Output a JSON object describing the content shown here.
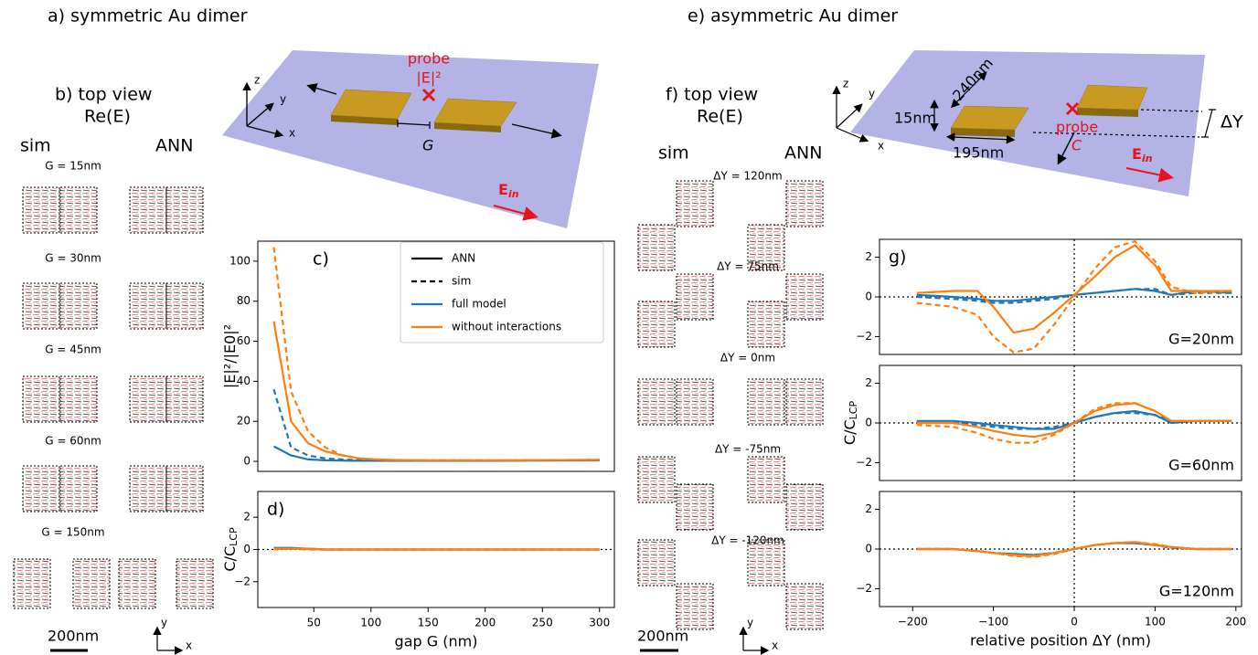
{
  "chart_data": [
    {
      "type": "line",
      "panel": "c)",
      "ylabel": "|E|²/|E0|²",
      "x": [
        15,
        30,
        45,
        60,
        75,
        90,
        105,
        120,
        150,
        200,
        250,
        300
      ],
      "xlim": [
        1,
        313
      ],
      "ylim": [
        -5,
        110
      ],
      "yticks": [
        0,
        20,
        40,
        60,
        80,
        100
      ],
      "legend": [
        {
          "label": "ANN",
          "style": "solid"
        },
        {
          "label": "sim",
          "style": "dashed"
        },
        {
          "label": "full model",
          "color": "#1f77b4"
        },
        {
          "label": "without interactions",
          "color": "#ff7f0e"
        }
      ],
      "series": [
        {
          "color": "#1f77b4",
          "style": "solid",
          "values": [
            7.5,
            3,
            1,
            0.5,
            0.4,
            0.3,
            0.3,
            0.3,
            0.3,
            0.3,
            0.4,
            0.5
          ]
        },
        {
          "color": "#1f77b4",
          "style": "dashed",
          "values": [
            36,
            7,
            3,
            1.5,
            1,
            0.6,
            0.5,
            0.4,
            0.4,
            0.4,
            0.5,
            0.6
          ]
        },
        {
          "color": "#ff7f0e",
          "style": "solid",
          "values": [
            70,
            20,
            9,
            5,
            3,
            1.5,
            1,
            0.7,
            0.5,
            0.5,
            0.6,
            0.8
          ]
        },
        {
          "color": "#ff7f0e",
          "style": "dashed",
          "values": [
            107,
            35,
            15,
            7,
            3,
            1.5,
            1,
            0.6,
            0.5,
            0.5,
            0.6,
            0.8
          ]
        }
      ]
    },
    {
      "type": "line",
      "panel": "d)",
      "ylabel": "C/C",
      "ylabel_sub": "LCP",
      "xlabel": "gap G (nm)",
      "hline": 0,
      "x": [
        15,
        30,
        45,
        60,
        75,
        90,
        105,
        120,
        150,
        200,
        250,
        300
      ],
      "xlim": [
        1,
        313
      ],
      "ylim": [
        -3.6,
        3.6
      ],
      "xticks": [
        50,
        100,
        150,
        200,
        250,
        300
      ],
      "yticks": [
        {
          "value": -2,
          "label": "−2"
        },
        0,
        2
      ],
      "series": [
        {
          "color": "#1f77b4",
          "style": "solid",
          "values": [
            0.1,
            0.1,
            0.05,
            0,
            0,
            0,
            0,
            0,
            0,
            0,
            0,
            0
          ]
        },
        {
          "color": "#1f77b4",
          "style": "dashed",
          "values": [
            0.05,
            0.05,
            0,
            0,
            0,
            0,
            0,
            0,
            0,
            0,
            0,
            0
          ]
        },
        {
          "color": "#ff7f0e",
          "style": "solid",
          "values": [
            0.05,
            0.05,
            0.05,
            0,
            0,
            0,
            0,
            0,
            0,
            0,
            0,
            0
          ]
        },
        {
          "color": "#ff7f0e",
          "style": "dashed",
          "values": [
            0,
            0.05,
            0,
            0,
            0,
            0,
            0,
            0,
            0,
            0,
            0,
            0
          ]
        }
      ]
    },
    {
      "type": "line",
      "panel": "g)",
      "annotation": "G=20nm",
      "hline": 0,
      "vline": 0,
      "x": [
        -195,
        -150,
        -120,
        -100,
        -75,
        -50,
        -25,
        0,
        25,
        50,
        75,
        100,
        120,
        150,
        195
      ],
      "xlim": [
        -241,
        207
      ],
      "ylim": [
        -2.9,
        2.9
      ],
      "yticks": [
        {
          "value": -2,
          "label": "−2"
        },
        0,
        2
      ],
      "series": [
        {
          "color": "#1f77b4",
          "style": "solid",
          "values": [
            0.1,
            0,
            -0.1,
            -0.2,
            -0.2,
            -0.1,
            0,
            0.1,
            0.2,
            0.3,
            0.4,
            0.3,
            0.1,
            0.3,
            0.2
          ]
        },
        {
          "color": "#1f77b4",
          "style": "dashed",
          "values": [
            0,
            -0.1,
            -0.2,
            -0.3,
            -0.3,
            -0.2,
            -0.1,
            0.1,
            0.2,
            0.3,
            0.4,
            0.4,
            0.1,
            0.2,
            0.2
          ]
        },
        {
          "color": "#ff7f0e",
          "style": "solid",
          "values": [
            0.2,
            0.3,
            0.3,
            -0.5,
            -1.8,
            -1.6,
            -0.8,
            0.1,
            1.0,
            2.0,
            2.6,
            1.6,
            0.3,
            0.3,
            0.3
          ]
        },
        {
          "color": "#ff7f0e",
          "style": "dashed",
          "values": [
            -0.3,
            -0.5,
            -0.9,
            -2.0,
            -2.8,
            -2.6,
            -1.4,
            0,
            1.4,
            2.5,
            2.8,
            1.8,
            0.5,
            0.2,
            0.3
          ]
        }
      ]
    },
    {
      "type": "line",
      "annotation": "G=60nm",
      "ylabel": "C/C",
      "ylabel_sub": "LCP",
      "hline": 0,
      "vline": 0,
      "x": [
        -195,
        -150,
        -120,
        -100,
        -75,
        -50,
        -25,
        0,
        25,
        50,
        75,
        100,
        120,
        150,
        195
      ],
      "xlim": [
        -241,
        207
      ],
      "ylim": [
        -2.9,
        2.9
      ],
      "yticks": [
        {
          "value": -2,
          "label": "−2"
        },
        0,
        2
      ],
      "series": [
        {
          "color": "#1f77b4",
          "style": "solid",
          "values": [
            0.1,
            0.1,
            0,
            -0.1,
            -0.2,
            -0.3,
            -0.3,
            0,
            0.3,
            0.5,
            0.6,
            0.4,
            0,
            0.1,
            0.1
          ]
        },
        {
          "color": "#1f77b4",
          "style": "dashed",
          "values": [
            0,
            0,
            -0.1,
            -0.2,
            -0.3,
            -0.3,
            -0.2,
            0,
            0.3,
            0.5,
            0.5,
            0.4,
            0.1,
            0.1,
            0.1
          ]
        },
        {
          "color": "#ff7f0e",
          "style": "solid",
          "values": [
            0,
            0,
            -0.2,
            -0.4,
            -0.6,
            -0.7,
            -0.5,
            0,
            0.6,
            0.9,
            1.0,
            0.6,
            0.1,
            0.1,
            0.1
          ]
        },
        {
          "color": "#ff7f0e",
          "style": "dashed",
          "values": [
            -0.1,
            -0.2,
            -0.5,
            -0.8,
            -1.0,
            -1.0,
            -0.6,
            0,
            0.7,
            1.0,
            1.0,
            0.6,
            0.1,
            0.1,
            0.1
          ]
        }
      ]
    },
    {
      "type": "line",
      "annotation": "G=120nm",
      "xlabel": "relative position ΔY (nm)",
      "hline": 0,
      "vline": 0,
      "x": [
        -195,
        -150,
        -120,
        -100,
        -75,
        -50,
        -25,
        0,
        25,
        50,
        75,
        100,
        120,
        150,
        195
      ],
      "xlim": [
        -241,
        207
      ],
      "ylim": [
        -2.9,
        2.9
      ],
      "yticks": [
        {
          "value": -2,
          "label": "−2"
        },
        0,
        2
      ],
      "xticks": [
        {
          "value": -200,
          "label": "−200"
        },
        {
          "value": -100,
          "label": "−100"
        },
        0,
        100,
        200
      ],
      "series": [
        {
          "color": "#1f77b4",
          "style": "solid",
          "values": [
            0,
            0,
            -0.1,
            -0.2,
            -0.25,
            -0.3,
            -0.2,
            0,
            0.2,
            0.3,
            0.3,
            0.2,
            0.1,
            0,
            0
          ]
        },
        {
          "color": "#1f77b4",
          "style": "dashed",
          "values": [
            0,
            0,
            -0.1,
            -0.2,
            -0.3,
            -0.3,
            -0.2,
            0,
            0.2,
            0.3,
            0.3,
            0.2,
            0.05,
            0,
            0
          ]
        },
        {
          "color": "#ff7f0e",
          "style": "solid",
          "values": [
            0,
            0,
            -0.1,
            -0.2,
            -0.3,
            -0.35,
            -0.2,
            0,
            0.2,
            0.3,
            0.35,
            0.2,
            0.1,
            0,
            0
          ]
        },
        {
          "color": "#ff7f0e",
          "style": "dashed",
          "values": [
            0,
            0,
            -0.1,
            -0.2,
            -0.35,
            -0.4,
            -0.25,
            0,
            0.2,
            0.3,
            0.35,
            0.25,
            0.1,
            0,
            0
          ]
        }
      ]
    }
  ],
  "figure": {
    "a": "a) symmetric Au dimer",
    "e": "e) asymmetric Au dimer",
    "b_title": "b) top view",
    "b_re": "Re(E)",
    "b_cols": [
      "sim",
      "ANN"
    ],
    "b_rows": [
      "G = 15nm",
      "G = 30nm",
      "G = 45nm",
      "G = 60nm",
      "G = 150nm"
    ],
    "f_title": "f) top view",
    "f_re": "Re(E)",
    "f_cols": [
      "sim",
      "ANN"
    ],
    "f_rows": [
      "ΔY = 120nm",
      "ΔY = 75nm",
      "ΔY = 0nm",
      "ΔY = -75nm",
      "ΔY = -120nm"
    ],
    "scale_bars": [
      "200nm",
      "200nm"
    ],
    "axes_a": [
      "z",
      "y",
      "x"
    ],
    "axes_e": [
      "z",
      "y",
      "x"
    ],
    "axes_b": [
      "y",
      "x"
    ],
    "axes_f": [
      "y",
      "x"
    ],
    "a_probe": "probe",
    "a_field": "|E|²",
    "a_gap": "G",
    "a_ein": [
      "E",
      "in"
    ],
    "e_dims": [
      "240nm",
      "15nm",
      "195nm"
    ],
    "e_probe": "probe",
    "e_C": "C",
    "e_dy": "ΔY",
    "e_ein": [
      "E",
      "in"
    ]
  }
}
